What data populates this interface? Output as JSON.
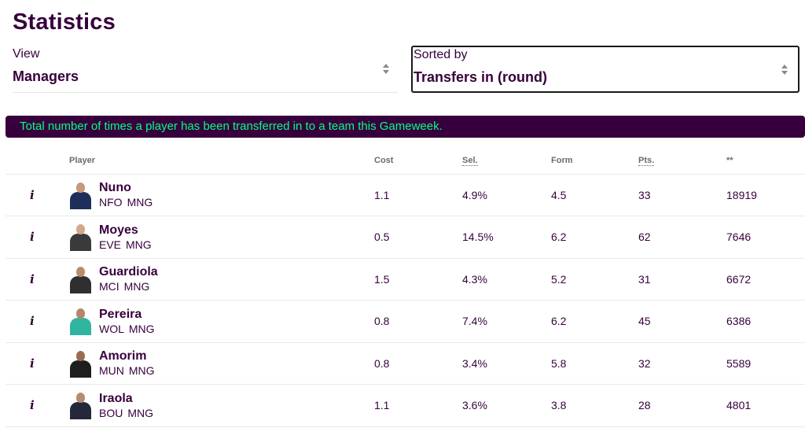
{
  "title": "Statistics",
  "view_select": {
    "label": "View",
    "value": "Managers"
  },
  "sort_select": {
    "label": "Sorted by",
    "value": "Transfers in (round)"
  },
  "banner": "Total number of times a player has been transferred in to a team this Gameweek.",
  "table": {
    "headers": {
      "player": "Player",
      "cost": "Cost",
      "sel": "Sel.",
      "form": "Form",
      "pts": "Pts.",
      "stat": "**"
    },
    "rows": [
      {
        "info": "i",
        "name": "Nuno",
        "team": "NFO",
        "pos": "MNG",
        "cost": "1.1",
        "sel": "4.9%",
        "form": "4.5",
        "pts": "33",
        "stat": "18919"
      },
      {
        "info": "i",
        "name": "Moyes",
        "team": "EVE",
        "pos": "MNG",
        "cost": "0.5",
        "sel": "14.5%",
        "form": "6.2",
        "pts": "62",
        "stat": "7646"
      },
      {
        "info": "i",
        "name": "Guardiola",
        "team": "MCI",
        "pos": "MNG",
        "cost": "1.5",
        "sel": "4.3%",
        "form": "5.2",
        "pts": "31",
        "stat": "6672"
      },
      {
        "info": "i",
        "name": "Pereira",
        "team": "WOL",
        "pos": "MNG",
        "cost": "0.8",
        "sel": "7.4%",
        "form": "6.2",
        "pts": "45",
        "stat": "6386"
      },
      {
        "info": "i",
        "name": "Amorim",
        "team": "MUN",
        "pos": "MNG",
        "cost": "0.8",
        "sel": "3.4%",
        "form": "5.8",
        "pts": "32",
        "stat": "5589"
      },
      {
        "info": "i",
        "name": "Iraola",
        "team": "BOU",
        "pos": "MNG",
        "cost": "1.1",
        "sel": "3.6%",
        "form": "3.8",
        "pts": "28",
        "stat": "4801"
      }
    ]
  },
  "colors": {
    "brand": "#37003c",
    "accent": "#00ff85"
  }
}
